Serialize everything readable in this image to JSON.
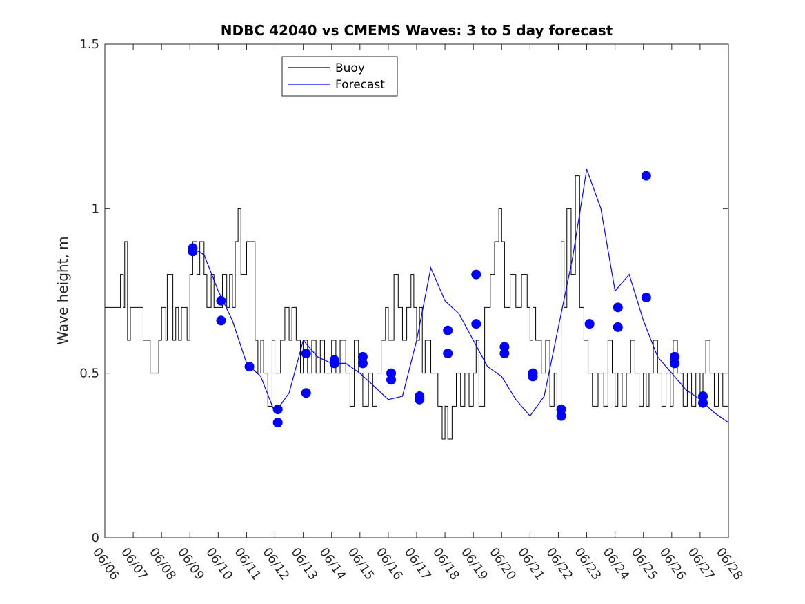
{
  "chart_data": {
    "type": "line",
    "title": "NDBC 42040 vs CMEMS Waves: 3 to 5 day forecast",
    "xlabel": "",
    "ylabel": "Wave height, m",
    "xlim": [
      "06/06",
      "06/28"
    ],
    "ylim": [
      0,
      1.5
    ],
    "x_tick_labels": [
      "06/06",
      "06/07",
      "06/08",
      "06/09",
      "06/10",
      "06/11",
      "06/12",
      "06/13",
      "06/14",
      "06/15",
      "06/16",
      "06/17",
      "06/18",
      "06/19",
      "06/20",
      "06/21",
      "06/22",
      "06/23",
      "06/24",
      "06/25",
      "06/26",
      "06/27",
      "06/28"
    ],
    "y_tick_labels": [
      "0",
      "0.5",
      "1",
      "1.5"
    ],
    "y_ticks": [
      0,
      0.5,
      1,
      1.5
    ],
    "grid": false,
    "legend": {
      "position": "top-left-center",
      "entries": [
        "Buoy",
        "Forecast"
      ]
    },
    "colors": {
      "buoy": "#000000",
      "forecast": "#0000ff"
    },
    "series": [
      {
        "name": "Buoy",
        "x_days_since_0606": [
          0,
          0.5,
          0.55,
          0.65,
          0.7,
          0.8,
          0.9,
          1.3,
          1.35,
          1.5,
          1.6,
          1.9,
          2.0,
          2.15,
          2.2,
          2.4,
          2.5,
          2.6,
          2.7,
          2.9,
          3.0,
          3.1,
          3.25,
          3.35,
          3.5,
          3.6,
          3.75,
          3.85,
          4.0,
          4.15,
          4.3,
          4.4,
          4.5,
          4.6,
          4.7,
          4.8,
          5.0,
          5.3,
          5.4,
          5.5,
          5.6,
          5.75,
          5.9,
          6.0,
          6.1,
          6.2,
          6.35,
          6.5,
          6.6,
          6.75,
          6.9,
          7.0,
          7.15,
          7.3,
          7.45,
          7.6,
          7.75,
          7.9,
          8.0,
          8.15,
          8.3,
          8.5,
          8.65,
          8.8,
          8.95,
          9.1,
          9.3,
          9.45,
          9.6,
          9.75,
          9.9,
          10.0,
          10.2,
          10.35,
          10.5,
          10.65,
          10.8,
          10.9,
          11.0,
          11.1,
          11.2,
          11.3,
          11.5,
          11.75,
          11.9,
          12.0,
          12.1,
          12.25,
          12.4,
          12.55,
          12.7,
          12.85,
          13.0,
          13.1,
          13.2,
          13.4,
          13.6,
          13.75,
          13.9,
          14.0,
          14.1,
          14.3,
          14.5,
          14.7,
          14.9,
          15.0,
          15.1,
          15.2,
          15.4,
          15.55,
          15.7,
          15.85,
          15.95,
          16.1,
          16.2,
          16.3,
          16.45,
          16.6,
          16.75,
          16.9,
          17.05,
          17.2,
          17.4,
          17.6,
          17.75,
          17.9,
          18.0,
          18.1,
          18.25,
          18.4,
          18.55,
          18.7,
          18.85,
          19.0,
          19.1,
          19.2,
          19.35,
          19.5,
          19.65,
          19.8,
          19.95,
          20.05,
          20.2,
          20.4,
          20.55,
          20.7,
          20.85,
          21.0,
          21.1,
          21.2,
          21.35,
          21.5,
          21.65,
          21.8,
          22.0
        ],
        "y": [
          0.7,
          0.7,
          0.8,
          0.7,
          0.9,
          0.6,
          0.7,
          0.7,
          0.6,
          0.6,
          0.5,
          0.6,
          0.7,
          0.6,
          0.8,
          0.6,
          0.7,
          0.6,
          0.7,
          0.6,
          0.8,
          0.9,
          0.8,
          0.9,
          0.8,
          0.7,
          0.8,
          0.7,
          0.7,
          0.8,
          0.7,
          0.8,
          0.7,
          0.9,
          1.0,
          0.8,
          0.9,
          0.6,
          0.5,
          0.6,
          0.5,
          0.4,
          0.6,
          0.5,
          0.5,
          0.6,
          0.7,
          0.6,
          0.7,
          0.6,
          0.5,
          0.6,
          0.5,
          0.6,
          0.5,
          0.6,
          0.5,
          0.5,
          0.6,
          0.5,
          0.6,
          0.5,
          0.4,
          0.6,
          0.5,
          0.4,
          0.5,
          0.4,
          0.5,
          0.6,
          0.7,
          0.6,
          0.8,
          0.7,
          0.6,
          0.7,
          0.8,
          0.7,
          0.6,
          0.7,
          0.5,
          0.6,
          0.5,
          0.4,
          0.3,
          0.4,
          0.3,
          0.4,
          0.5,
          0.4,
          0.5,
          0.4,
          0.5,
          0.6,
          0.4,
          0.7,
          0.8,
          0.9,
          1.0,
          0.9,
          0.7,
          0.8,
          0.7,
          0.8,
          0.7,
          0.6,
          0.7,
          0.6,
          0.5,
          0.6,
          0.4,
          0.5,
          0.4,
          0.9,
          0.7,
          1.0,
          0.8,
          1.1,
          0.7,
          0.6,
          0.5,
          0.4,
          0.5,
          0.4,
          0.6,
          0.5,
          0.4,
          0.5,
          0.4,
          0.5,
          0.6,
          0.5,
          0.4,
          0.5,
          0.4,
          0.5,
          0.6,
          0.5,
          0.4,
          0.5,
          0.4,
          0.6,
          0.5,
          0.4,
          0.5,
          0.4,
          0.5,
          0.4,
          0.5,
          0.6,
          0.5,
          0.4,
          0.5,
          0.4,
          0.4
        ]
      },
      {
        "name": "Forecast",
        "x_days_since_0606": [
          3.1,
          3.5,
          4.0,
          4.5,
          5.0,
          5.5,
          6.0,
          6.5,
          7.0,
          7.5,
          8.0,
          8.5,
          9.0,
          9.5,
          10.0,
          10.5,
          11.0,
          11.5,
          12.0,
          12.5,
          13.0,
          13.5,
          14.0,
          14.5,
          15.0,
          15.5,
          16.0,
          16.5,
          17.0,
          17.5,
          18.0,
          18.5,
          19.0,
          19.5,
          20.0,
          20.5,
          21.0,
          21.5,
          22.0
        ],
        "y": [
          0.88,
          0.86,
          0.75,
          0.66,
          0.53,
          0.49,
          0.38,
          0.44,
          0.6,
          0.55,
          0.53,
          0.53,
          0.5,
          0.46,
          0.42,
          0.43,
          0.6,
          0.82,
          0.72,
          0.68,
          0.6,
          0.52,
          0.49,
          0.42,
          0.37,
          0.43,
          0.64,
          0.85,
          1.12,
          1.0,
          0.75,
          0.8,
          0.66,
          0.55,
          0.5,
          0.45,
          0.42,
          0.38,
          0.35
        ]
      }
    ],
    "forecast_markers": {
      "x_days_since_0606": [
        3.1,
        3.1,
        4.1,
        4.1,
        5.1,
        6.1,
        6.1,
        7.1,
        7.1,
        8.1,
        8.1,
        9.1,
        9.1,
        10.1,
        10.1,
        11.1,
        11.1,
        12.1,
        12.1,
        13.1,
        13.1,
        14.1,
        14.1,
        15.1,
        15.1,
        16.1,
        16.1,
        17.1,
        18.1,
        18.1,
        19.1,
        19.1,
        20.1,
        20.1,
        21.1,
        21.1
      ],
      "y": [
        0.88,
        0.87,
        0.72,
        0.66,
        0.52,
        0.39,
        0.35,
        0.56,
        0.44,
        0.54,
        0.53,
        0.55,
        0.53,
        0.5,
        0.48,
        0.43,
        0.42,
        0.63,
        0.56,
        0.8,
        0.65,
        0.58,
        0.56,
        0.5,
        0.49,
        0.39,
        0.37,
        0.65,
        0.64,
        0.7,
        1.1,
        0.73,
        0.55,
        0.53,
        0.43,
        0.41
      ]
    }
  }
}
